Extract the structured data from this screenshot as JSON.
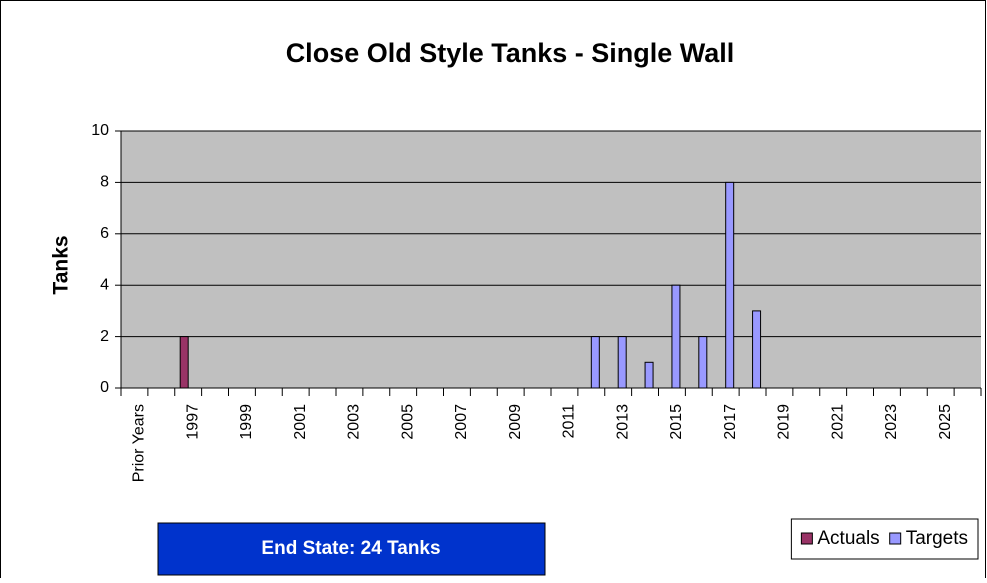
{
  "chart_data": {
    "type": "bar",
    "title": "Close Old Style Tanks - Single Wall",
    "y_label": "Tanks",
    "annotation": "End State: 24 Tanks",
    "categories": [
      "Prior Years",
      null,
      "1997",
      null,
      "1999",
      null,
      "2001",
      null,
      "2003",
      null,
      "2005",
      null,
      "2007",
      null,
      "2009",
      null,
      "2011",
      null,
      "2013",
      null,
      "2015",
      null,
      "2017",
      null,
      "2019",
      null,
      "2021",
      null,
      "2023",
      null,
      "2025",
      null
    ],
    "series": [
      {
        "name": "Actuals",
        "color": "#993366",
        "values": [
          null,
          null,
          2,
          null,
          null,
          null,
          null,
          null,
          null,
          null,
          null,
          null,
          null,
          null,
          null,
          null,
          null,
          null,
          null,
          null,
          null,
          null,
          null,
          null,
          null,
          null,
          null,
          null,
          null,
          null,
          null,
          null
        ]
      },
      {
        "name": "Targets",
        "color": "#9999ff",
        "values": [
          null,
          null,
          null,
          null,
          null,
          null,
          null,
          null,
          null,
          null,
          null,
          null,
          null,
          null,
          null,
          null,
          null,
          2,
          2,
          1,
          4,
          2,
          8,
          3,
          null,
          null,
          null,
          null,
          null,
          null,
          null,
          null
        ]
      }
    ],
    "ylim": [
      0,
      10
    ],
    "yticks": [
      0,
      2,
      4,
      6,
      8,
      10
    ],
    "grid": true,
    "legend": "bottom-right"
  }
}
